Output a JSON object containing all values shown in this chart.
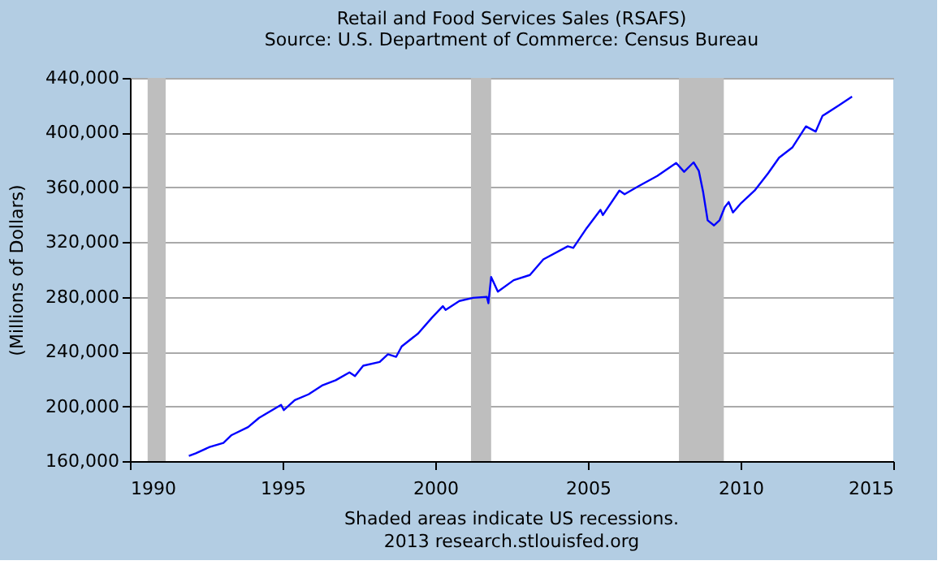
{
  "chart_data": {
    "type": "line",
    "title": "Retail and Food Services Sales (RSAFS)",
    "subtitle": "Source: U.S. Department of Commerce: Census Bureau",
    "ylabel": "(Millions of Dollars)",
    "annotations": [
      "Shaded areas indicate US recessions.",
      "2013 research.stlouisfed.org"
    ],
    "series": [
      {
        "color": "#0000ff",
        "x": [
          1991.93,
          1992.16,
          1992.61,
          1993.06,
          1993.33,
          1993.87,
          1994.23,
          1994.95,
          1995.04,
          1995.4,
          1995.85,
          1996.29,
          1996.74,
          1997.19,
          1997.37,
          1997.64,
          1998.18,
          1998.45,
          1998.72,
          1998.9,
          1999.44,
          1999.89,
          2000.25,
          2000.34,
          2000.79,
          2001.24,
          2001.69,
          2001.74,
          2001.83,
          2002.05,
          2002.57,
          2003.1,
          2003.54,
          2004.34,
          2004.52,
          2004.96,
          2005.41,
          2005.49,
          2006.03,
          2006.2,
          2006.65,
          2007.27,
          2007.89,
          2008.15,
          2008.46,
          2008.63,
          2008.77,
          2008.92,
          2009.13,
          2009.31,
          2009.48,
          2009.61,
          2009.75,
          2010.02,
          2010.46,
          2010.9,
          2011.26,
          2011.7,
          2012.14,
          2012.46,
          2012.68,
          2013.21,
          2013.65
        ],
        "values": [
          163800,
          165700,
          170300,
          173300,
          179000,
          184800,
          191600,
          201100,
          197300,
          204600,
          208800,
          215200,
          219100,
          224800,
          222100,
          229700,
          232400,
          238100,
          236200,
          243800,
          253300,
          264800,
          273200,
          270500,
          277000,
          279300,
          280000,
          275400,
          294500,
          283800,
          292200,
          296000,
          307400,
          317000,
          315800,
          330300,
          343600,
          339800,
          357700,
          355000,
          360800,
          368400,
          377900,
          371400,
          378300,
          372200,
          357000,
          336000,
          332200,
          336000,
          345500,
          349300,
          341700,
          348600,
          357700,
          370300,
          381700,
          389300,
          404600,
          400800,
          412200,
          419800,
          426300
        ]
      }
    ],
    "bands": [
      {
        "axis": "x",
        "from": 1990.58,
        "to": 1991.17,
        "color": "#bebebe"
      },
      {
        "axis": "x",
        "from": 2001.17,
        "to": 2001.83,
        "color": "#bebebe"
      },
      {
        "axis": "x",
        "from": 2007.98,
        "to": 2009.45,
        "color": "#bebebe"
      }
    ],
    "xlim": [
      1990,
      2015
    ],
    "xticks": [
      1990,
      1995,
      2000,
      2005,
      2010,
      2015
    ],
    "ylim": [
      160000,
      440000
    ],
    "yticks": [
      {
        "value": 160000,
        "label": "160,000"
      },
      {
        "value": 200000,
        "label": "200,000"
      },
      {
        "value": 240000,
        "label": "240,000"
      },
      {
        "value": 280000,
        "label": "280,000"
      },
      {
        "value": 320000,
        "label": "320,000"
      },
      {
        "value": 360000,
        "label": "360,000"
      },
      {
        "value": 400000,
        "label": "400,000"
      },
      {
        "value": 440000,
        "label": "440,000"
      }
    ],
    "grid": "y"
  }
}
